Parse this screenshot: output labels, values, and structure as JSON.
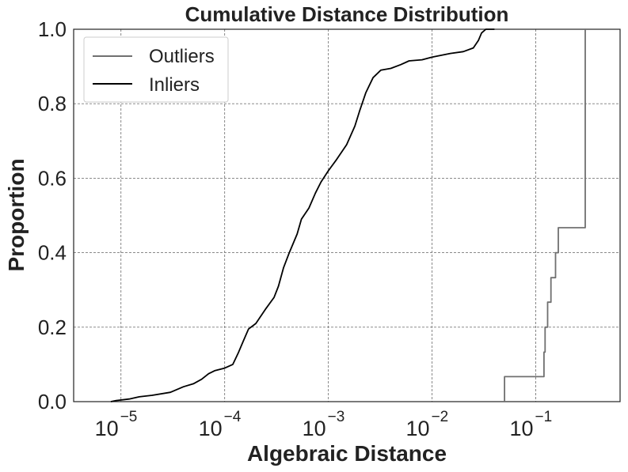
{
  "chart_data": {
    "type": "line",
    "title": "Cumulative Distance Distribution",
    "xlabel": "Algebraic Distance",
    "ylabel": "Proportion",
    "xscale": "log",
    "xlim": [
      3.5e-06,
      0.65
    ],
    "ylim": [
      0.0,
      1.0
    ],
    "grid": true,
    "legend_position": "top-left",
    "x_ticks": [
      {
        "base": "10",
        "exp": "−5",
        "value": 1e-05
      },
      {
        "base": "10",
        "exp": "−4",
        "value": 0.0001
      },
      {
        "base": "10",
        "exp": "−3",
        "value": 0.001
      },
      {
        "base": "10",
        "exp": "−2",
        "value": 0.01
      },
      {
        "base": "10",
        "exp": "−1",
        "value": 0.1
      }
    ],
    "y_ticks": [
      "0.0",
      "0.2",
      "0.4",
      "0.6",
      "0.8",
      "1.0"
    ],
    "y_tick_values": [
      0.0,
      0.2,
      0.4,
      0.6,
      0.8,
      1.0
    ],
    "series": [
      {
        "name": "Outliers",
        "color": "#707070",
        "step": true,
        "points": [
          [
            0.05,
            0.0
          ],
          [
            0.05,
            0.067
          ],
          [
            0.12,
            0.067
          ],
          [
            0.12,
            0.133
          ],
          [
            0.123,
            0.133
          ],
          [
            0.123,
            0.2
          ],
          [
            0.13,
            0.2
          ],
          [
            0.13,
            0.267
          ],
          [
            0.14,
            0.267
          ],
          [
            0.14,
            0.333
          ],
          [
            0.155,
            0.333
          ],
          [
            0.155,
            0.4
          ],
          [
            0.165,
            0.4
          ],
          [
            0.165,
            0.467
          ],
          [
            0.3,
            0.467
          ],
          [
            0.3,
            1.0
          ]
        ]
      },
      {
        "name": "Inliers",
        "color": "#000000",
        "step": false,
        "points": [
          [
            8e-06,
            0.0
          ],
          [
            9e-06,
            0.003
          ],
          [
            1.2e-05,
            0.007
          ],
          [
            1.5e-05,
            0.013
          ],
          [
            2e-05,
            0.017
          ],
          [
            3e-05,
            0.025
          ],
          [
            4e-05,
            0.04
          ],
          [
            5e-05,
            0.048
          ],
          [
            6e-05,
            0.06
          ],
          [
            7e-05,
            0.075
          ],
          [
            8e-05,
            0.083
          ],
          [
            0.0001,
            0.09
          ],
          [
            0.00012,
            0.1
          ],
          [
            0.000135,
            0.13
          ],
          [
            0.00015,
            0.16
          ],
          [
            0.00017,
            0.195
          ],
          [
            0.0002,
            0.21
          ],
          [
            0.00025,
            0.25
          ],
          [
            0.0003,
            0.28
          ],
          [
            0.00033,
            0.31
          ],
          [
            0.00037,
            0.36
          ],
          [
            0.00042,
            0.4
          ],
          [
            0.0005,
            0.45
          ],
          [
            0.00055,
            0.49
          ],
          [
            0.00065,
            0.52
          ],
          [
            0.00075,
            0.56
          ],
          [
            0.00085,
            0.59
          ],
          [
            0.001,
            0.62
          ],
          [
            0.0012,
            0.65
          ],
          [
            0.0015,
            0.69
          ],
          [
            0.0018,
            0.74
          ],
          [
            0.002,
            0.78
          ],
          [
            0.0023,
            0.83
          ],
          [
            0.0027,
            0.87
          ],
          [
            0.0032,
            0.89
          ],
          [
            0.004,
            0.895
          ],
          [
            0.005,
            0.905
          ],
          [
            0.006,
            0.915
          ],
          [
            0.008,
            0.918
          ],
          [
            0.01,
            0.925
          ],
          [
            0.015,
            0.935
          ],
          [
            0.02,
            0.94
          ],
          [
            0.025,
            0.95
          ],
          [
            0.028,
            0.97
          ],
          [
            0.03,
            0.99
          ],
          [
            0.033,
            1.0
          ],
          [
            0.04,
            1.0
          ]
        ]
      }
    ]
  }
}
